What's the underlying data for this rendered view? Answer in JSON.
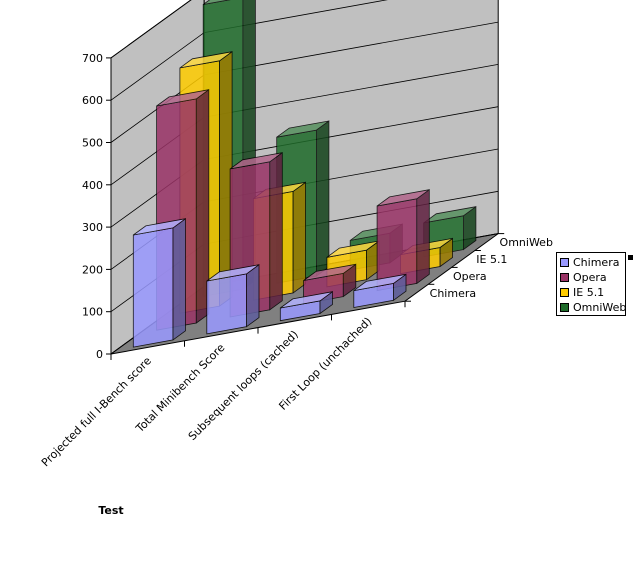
{
  "chart_data": {
    "type": "bar",
    "projection": "3d",
    "title": "",
    "xlabel": "Test",
    "ylabel": "",
    "ylim": [
      0,
      700
    ],
    "yticks": [
      0,
      100,
      200,
      300,
      400,
      500,
      600,
      700
    ],
    "grid": true,
    "legend_position": "right",
    "categories": [
      "Projected full I-Bench score",
      "Total Minibench Score",
      "Subsequent loops (cached)",
      "First Loop (unchached)"
    ],
    "series": [
      {
        "name": "Chimera",
        "color": "#9999ff",
        "values": [
          265,
          125,
          30,
          40
        ]
      },
      {
        "name": "Opera",
        "color": "#993366",
        "values": [
          530,
          350,
          55,
          200
        ]
      },
      {
        "name": "IE 5.1",
        "color": "#ffcc00",
        "values": [
          580,
          240,
          70,
          45
        ]
      },
      {
        "name": "OmniWeb",
        "color": "#1f6b2a",
        "values": [
          690,
          345,
          70,
          80
        ]
      }
    ]
  }
}
